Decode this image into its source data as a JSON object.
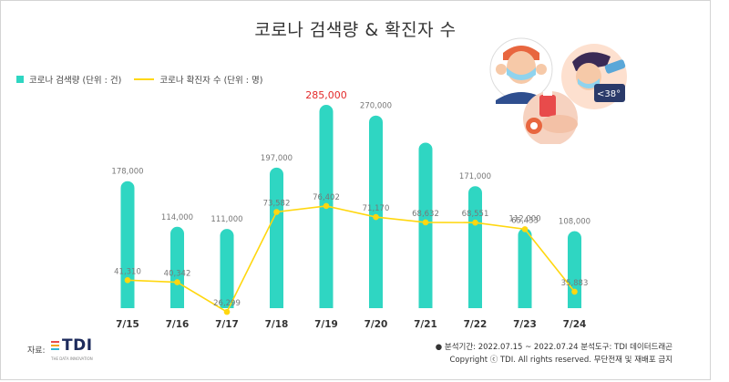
{
  "chart_data": {
    "type": "bar",
    "title": "코로나 검색량 & 확진자 수",
    "categories": [
      "7/15",
      "7/16",
      "7/17",
      "7/18",
      "7/19",
      "7/20",
      "7/21",
      "7/22",
      "7/23",
      "7/24"
    ],
    "series": [
      {
        "name": "코로나 검색량  (단위 : 건)",
        "type": "bar",
        "color": "#2fd6c2",
        "values": [
          178000,
          114000,
          111000,
          197000,
          285000,
          270000,
          232000,
          171000,
          112000,
          108000
        ],
        "labels": [
          "178,000",
          "114,000",
          "111,000",
          "197,000",
          "285,000",
          "270,000",
          "",
          "171,000",
          "112,000",
          "108,000"
        ]
      },
      {
        "name": "코로나 확진자 수 (단위 : 명)",
        "type": "line",
        "color": "#ffd70f",
        "values": [
          41310,
          40342,
          26299,
          73582,
          76402,
          71170,
          68632,
          68551,
          65433,
          35883
        ],
        "labels": [
          "41,310",
          "40,342",
          "26,299",
          "73,582",
          "76,402",
          "71,170",
          "68,632",
          "68,551",
          "65,433",
          "35,883"
        ]
      }
    ],
    "highlight": {
      "index": 4,
      "color": "#e32a2a"
    },
    "legend_position": "top-left",
    "grid": false
  },
  "source": {
    "label": "자료:",
    "logo_text": "TDI",
    "tagline": "THE DATA INNOVATION"
  },
  "footer": {
    "line1": "● 분석기간: 2022.07.15 ~ 2022.07.24   분석도구: TDI 데이터드래곤",
    "line2": "Copyright ⓒ TDI. All rights reserved. 무단전재 및 재배포 금지"
  },
  "illustration": {
    "thermometer_text": "<38°"
  },
  "colors": {
    "bar": "#2fd6c2",
    "line": "#ffd70f",
    "highlight": "#e32a2a",
    "label": "#777777",
    "axis_label": "#333333"
  }
}
